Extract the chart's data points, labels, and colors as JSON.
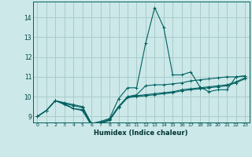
{
  "xlabel": "Humidex (Indice chaleur)",
  "bg_color": "#cce8e8",
  "grid_color": "#aacccc",
  "line_color": "#005f5f",
  "xlim": [
    -0.5,
    23.5
  ],
  "ylim": [
    8.7,
    14.8
  ],
  "xticks": [
    0,
    1,
    2,
    3,
    4,
    5,
    6,
    7,
    8,
    9,
    10,
    11,
    12,
    13,
    14,
    15,
    16,
    17,
    18,
    19,
    20,
    21,
    22,
    23
  ],
  "yticks": [
    9,
    10,
    11,
    12,
    13,
    14
  ],
  "series": [
    [
      9.0,
      9.3,
      9.8,
      9.7,
      9.6,
      9.5,
      8.65,
      8.75,
      8.9,
      9.9,
      10.45,
      10.45,
      12.7,
      14.5,
      13.5,
      11.1,
      11.1,
      11.25,
      10.5,
      10.25,
      10.35,
      10.35,
      11.0,
      11.05
    ],
    [
      9.0,
      9.3,
      9.8,
      9.65,
      9.4,
      9.35,
      8.6,
      8.7,
      8.85,
      9.5,
      10.0,
      10.1,
      10.55,
      10.6,
      10.6,
      10.65,
      10.7,
      10.8,
      10.85,
      10.9,
      10.95,
      11.0,
      11.0,
      11.05
    ],
    [
      9.0,
      9.3,
      9.8,
      9.65,
      9.55,
      9.45,
      8.6,
      8.7,
      8.85,
      9.5,
      10.0,
      10.05,
      10.1,
      10.15,
      10.2,
      10.25,
      10.35,
      10.4,
      10.45,
      10.5,
      10.55,
      10.6,
      10.75,
      10.95
    ],
    [
      9.0,
      9.3,
      9.8,
      9.6,
      9.4,
      9.3,
      8.55,
      8.65,
      8.8,
      9.45,
      9.95,
      10.0,
      10.05,
      10.1,
      10.15,
      10.2,
      10.3,
      10.35,
      10.4,
      10.45,
      10.5,
      10.55,
      10.7,
      10.9
    ]
  ]
}
